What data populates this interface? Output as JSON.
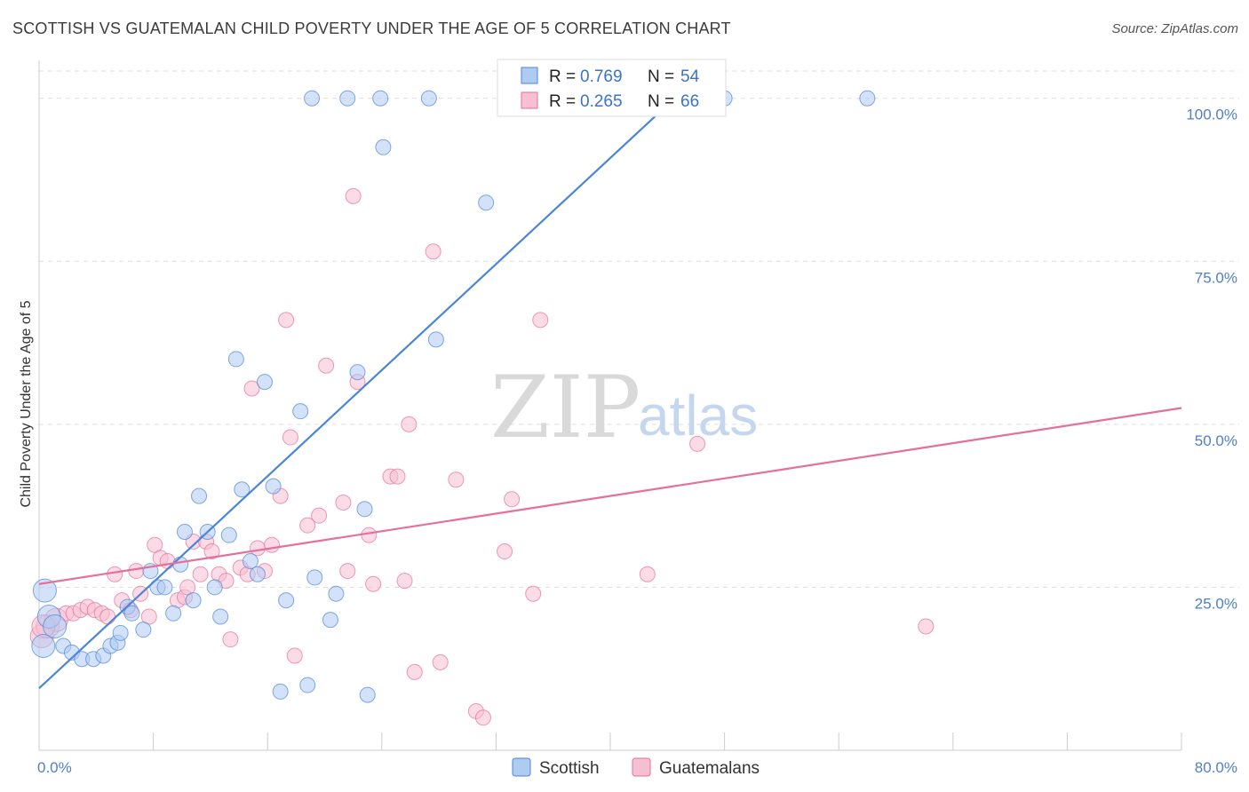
{
  "title": "SCOTTISH VS GUATEMALAN CHILD POVERTY UNDER THE AGE OF 5 CORRELATION CHART",
  "source": "Source: ZipAtlas.com",
  "watermark": {
    "zip": "ZIP",
    "atlas": "atlas"
  },
  "colors": {
    "scottish": "#4a86d8",
    "guatemalans": "#e66f9a",
    "scottish_fill": "#aecbf2",
    "guatemalans_fill": "#f7bfd2",
    "tick": "#4f7fc8",
    "grid": "#dddddd"
  },
  "legend": {
    "rows": [
      {
        "r_label": "R =",
        "r_value": "0.769",
        "n_label": "N =",
        "n_value": "54"
      },
      {
        "r_label": "R =",
        "r_value": "0.265",
        "n_label": "N =",
        "n_value": "66"
      }
    ]
  },
  "chart_data": {
    "type": "scatter",
    "title": "SCOTTISH VS GUATEMALAN CHILD POVERTY UNDER THE AGE OF 5 CORRELATION CHART",
    "xlabel": "",
    "ylabel": "Child Poverty Under the Age of 5",
    "xlim": [
      0,
      80
    ],
    "ylim": [
      0,
      105
    ],
    "x_tick_labels": [
      "0.0%",
      "80.0%"
    ],
    "y_ticks": [
      25,
      50,
      75,
      100
    ],
    "y_tick_labels": [
      "25.0%",
      "50.0%",
      "75.0%",
      "100.0%"
    ],
    "grid": true,
    "legend_position": "top-center",
    "series": [
      {
        "name": "Scottish",
        "r": 0.769,
        "n": 54,
        "trend": {
          "x": [
            0,
            44.5
          ],
          "y": [
            9.5,
            100
          ]
        },
        "points": [
          [
            0.4,
            24.5
          ],
          [
            0.7,
            20.5
          ],
          [
            1.1,
            19.0
          ],
          [
            1.7,
            16.0
          ],
          [
            2.3,
            15.0
          ],
          [
            3.0,
            14.0
          ],
          [
            3.8,
            14.0
          ],
          [
            4.5,
            14.5
          ],
          [
            5.0,
            16.0
          ],
          [
            5.5,
            16.5
          ],
          [
            5.7,
            18.0
          ],
          [
            6.2,
            22.0
          ],
          [
            6.5,
            21.0
          ],
          [
            7.3,
            18.5
          ],
          [
            7.8,
            27.5
          ],
          [
            8.3,
            25.0
          ],
          [
            8.8,
            25.0
          ],
          [
            9.4,
            21.0
          ],
          [
            9.9,
            28.5
          ],
          [
            10.2,
            33.5
          ],
          [
            10.8,
            23.0
          ],
          [
            11.2,
            39.0
          ],
          [
            11.8,
            33.5
          ],
          [
            12.3,
            25.0
          ],
          [
            12.7,
            20.5
          ],
          [
            13.3,
            33.0
          ],
          [
            13.8,
            60.0
          ],
          [
            14.2,
            40.0
          ],
          [
            14.8,
            29.0
          ],
          [
            15.3,
            27.0
          ],
          [
            15.8,
            56.5
          ],
          [
            16.4,
            40.5
          ],
          [
            16.9,
            9.0
          ],
          [
            17.3,
            23.0
          ],
          [
            18.3,
            52.0
          ],
          [
            18.8,
            10.0
          ],
          [
            19.3,
            26.5
          ],
          [
            20.4,
            20.0
          ],
          [
            20.8,
            24.0
          ],
          [
            22.3,
            58.0
          ],
          [
            22.8,
            37.0
          ],
          [
            23.0,
            8.5
          ],
          [
            24.1,
            92.5
          ],
          [
            27.8,
            63.0
          ],
          [
            31.3,
            84.0
          ],
          [
            19.1,
            100
          ],
          [
            21.6,
            100
          ],
          [
            23.9,
            100
          ],
          [
            27.3,
            100
          ],
          [
            36.3,
            100
          ],
          [
            40.8,
            100
          ],
          [
            48.0,
            100
          ],
          [
            58.0,
            100
          ],
          [
            0.3,
            16.0
          ]
        ]
      },
      {
        "name": "Guatemalans",
        "r": 0.265,
        "n": 66,
        "trend": {
          "x": [
            0,
            80
          ],
          "y": [
            25.5,
            52.5
          ]
        },
        "points": [
          [
            0.2,
            17.5
          ],
          [
            0.6,
            19.0
          ],
          [
            1.2,
            20.0
          ],
          [
            1.9,
            21.0
          ],
          [
            2.4,
            21.0
          ],
          [
            2.9,
            21.5
          ],
          [
            3.4,
            22.0
          ],
          [
            3.9,
            21.5
          ],
          [
            4.4,
            21.0
          ],
          [
            4.8,
            20.5
          ],
          [
            5.3,
            27.0
          ],
          [
            5.8,
            23.0
          ],
          [
            6.4,
            21.5
          ],
          [
            6.8,
            27.5
          ],
          [
            7.1,
            24.0
          ],
          [
            7.7,
            20.5
          ],
          [
            8.1,
            31.5
          ],
          [
            8.5,
            29.5
          ],
          [
            9.0,
            29.0
          ],
          [
            9.7,
            23.0
          ],
          [
            10.2,
            23.5
          ],
          [
            10.4,
            25.0
          ],
          [
            10.8,
            32.0
          ],
          [
            11.3,
            27.0
          ],
          [
            11.7,
            32.0
          ],
          [
            12.1,
            30.5
          ],
          [
            12.6,
            27.0
          ],
          [
            13.1,
            26.0
          ],
          [
            13.4,
            17.0
          ],
          [
            14.1,
            28.0
          ],
          [
            14.6,
            27.0
          ],
          [
            14.9,
            55.5
          ],
          [
            15.3,
            31.0
          ],
          [
            15.8,
            27.5
          ],
          [
            16.3,
            31.5
          ],
          [
            16.9,
            39.0
          ],
          [
            17.3,
            66.0
          ],
          [
            17.6,
            48.0
          ],
          [
            17.9,
            14.5
          ],
          [
            18.8,
            34.5
          ],
          [
            19.6,
            36.0
          ],
          [
            20.1,
            59.0
          ],
          [
            21.3,
            38.0
          ],
          [
            21.6,
            27.5
          ],
          [
            22.0,
            85.0
          ],
          [
            22.3,
            56.5
          ],
          [
            23.1,
            33.0
          ],
          [
            23.4,
            25.5
          ],
          [
            24.6,
            42.0
          ],
          [
            25.1,
            42.0
          ],
          [
            25.6,
            26.0
          ],
          [
            25.9,
            50.0
          ],
          [
            26.3,
            12.0
          ],
          [
            27.6,
            76.5
          ],
          [
            28.1,
            13.5
          ],
          [
            29.2,
            41.5
          ],
          [
            30.6,
            6.0
          ],
          [
            31.1,
            5.0
          ],
          [
            32.6,
            30.5
          ],
          [
            33.1,
            38.5
          ],
          [
            34.6,
            24.0
          ],
          [
            35.1,
            66.0
          ],
          [
            42.6,
            27.0
          ],
          [
            46.1,
            47.0
          ],
          [
            62.1,
            19.0
          ],
          [
            0.3,
            19.0
          ]
        ]
      }
    ]
  },
  "bottom_legend": [
    "Scottish",
    "Guatemalans"
  ]
}
